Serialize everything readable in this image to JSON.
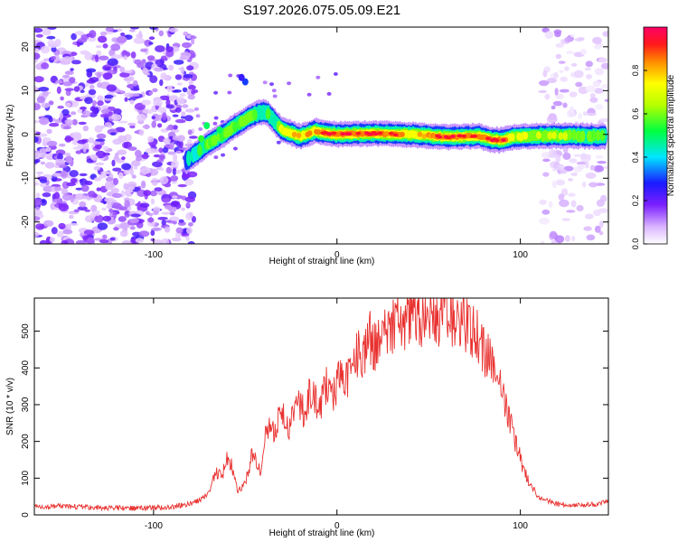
{
  "title": "S197.2026.075.05.09.E21",
  "colors": {
    "line": "#e8312f",
    "axis": "#000000",
    "spectrogram_noise": "#8a2be2"
  },
  "chart_data": [
    {
      "type": "heatmap",
      "name": "spectrogram",
      "xlabel": "Height of straight line (km)",
      "ylabel": "Frequency (Hz)",
      "xlim": [
        -165,
        148
      ],
      "ylim": [
        -25,
        24.5
      ],
      "xticks": [
        -100,
        0,
        100
      ],
      "yticks": [
        -20,
        -10,
        0,
        10,
        20
      ],
      "colorbar": {
        "label": "Normalized spectral amplitude",
        "range": [
          0,
          1
        ],
        "ticks": [
          0.0,
          0.2,
          0.4,
          0.6,
          0.8
        ]
      },
      "ridge_track": {
        "x": [
          -82,
          -76,
          -70,
          -62,
          -55,
          -48,
          -42,
          -38,
          -34,
          -30,
          -26,
          -20,
          -12,
          -5,
          0,
          20,
          40,
          60,
          78,
          84,
          90,
          96,
          110,
          130,
          147
        ],
        "y": [
          -6,
          -4,
          -2,
          0,
          2,
          4,
          5,
          5,
          3,
          1,
          0.5,
          -0.5,
          0.8,
          0.2,
          0,
          0.2,
          0,
          -0.6,
          -0.4,
          -1.2,
          -1.3,
          -0.6,
          -0.3,
          -0.3,
          -0.5
        ],
        "amplitude": [
          0.45,
          0.5,
          0.55,
          0.6,
          0.55,
          0.6,
          0.55,
          0.5,
          0.55,
          0.7,
          0.8,
          0.75,
          0.85,
          0.9,
          0.9,
          0.95,
          0.8,
          0.9,
          0.85,
          0.95,
          0.95,
          0.7,
          0.65,
          0.6,
          0.55
        ]
      },
      "noise_regions": [
        {
          "x": [
            -165,
            -78
          ],
          "y": [
            -25,
            24.5
          ],
          "amplitude": [
            0.05,
            0.25
          ]
        },
        {
          "x": [
            112,
            148
          ],
          "y": [
            -25,
            24.5
          ],
          "amplitude": [
            0.02,
            0.12
          ]
        }
      ]
    },
    {
      "type": "line",
      "name": "snr",
      "xlabel": "Height of straight line (km)",
      "ylabel": "SNR (10 * v/v)",
      "xlim": [
        -165,
        148
      ],
      "ylim": [
        0,
        590
      ],
      "xticks": [
        -100,
        0,
        100
      ],
      "yticks": [
        0,
        100,
        200,
        300,
        400,
        500
      ],
      "series": [
        {
          "name": "SNR",
          "x": [
            -165,
            -150,
            -130,
            -110,
            -90,
            -80,
            -75,
            -70,
            -66,
            -63,
            -60,
            -57,
            -54,
            -50,
            -46,
            -42,
            -38,
            -34,
            -30,
            -26,
            -22,
            -18,
            -14,
            -10,
            -6,
            -2,
            2,
            6,
            10,
            14,
            18,
            22,
            26,
            30,
            34,
            38,
            42,
            46,
            50,
            54,
            58,
            62,
            66,
            70,
            74,
            78,
            82,
            86,
            90,
            94,
            98,
            102,
            106,
            110,
            120,
            130,
            140,
            148
          ],
          "values": [
            22,
            24,
            20,
            18,
            22,
            30,
            40,
            60,
            120,
            100,
            160,
            130,
            60,
            90,
            170,
            120,
            240,
            220,
            290,
            230,
            300,
            280,
            340,
            290,
            350,
            330,
            390,
            370,
            440,
            430,
            480,
            460,
            510,
            500,
            540,
            520,
            570,
            540,
            560,
            530,
            560,
            540,
            555,
            520,
            500,
            470,
            430,
            400,
            330,
            260,
            190,
            120,
            80,
            45,
            30,
            25,
            28,
            35
          ]
        }
      ]
    }
  ]
}
